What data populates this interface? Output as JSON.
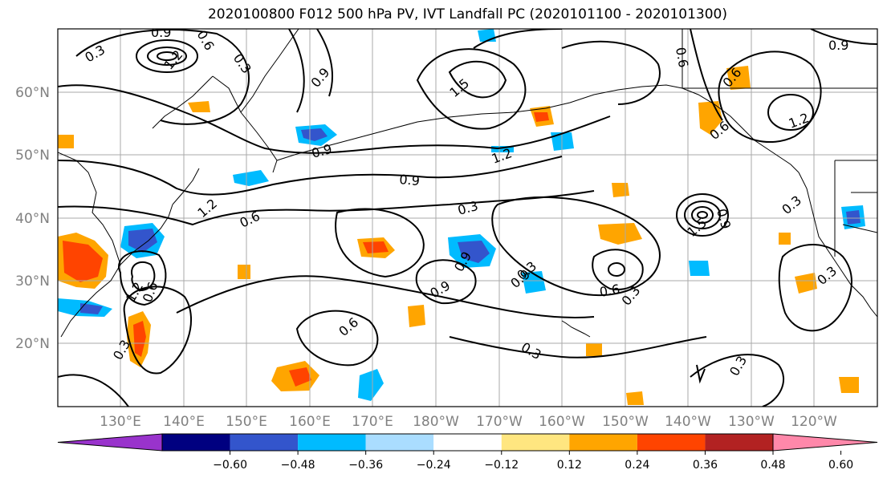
{
  "title": "2020100800 F012 500 hPa PV, IVT Landfall PC (2020101100 - 2020101300)",
  "lat_labels": [
    "60°N",
    "50°N",
    "40°N",
    "30°N",
    "20°N"
  ],
  "lon_labels": [
    "130°E",
    "140°E",
    "150°E",
    "160°E",
    "170°E",
    "180°W",
    "170°W",
    "160°W",
    "150°W",
    "140°W",
    "130°W",
    "120°W"
  ],
  "colorbar": {
    "ticks": [
      "−0.60",
      "−0.48",
      "−0.36",
      "−0.24",
      "−0.12",
      "0.12",
      "0.24",
      "0.36",
      "0.48",
      "0.60"
    ],
    "colors": [
      "#9933cc",
      "#000080",
      "#3355cc",
      "#00bbff",
      "#aaddff",
      "#ffffff",
      "#ffe680",
      "#ffa500",
      "#ff4400",
      "#b22222",
      "#ff88aa"
    ]
  },
  "contour_labels": [
    "0.3",
    "0.9",
    "0.6",
    "1.2",
    "0.3",
    "1.5",
    "0.9",
    "1.2",
    "0.9",
    "1.2",
    "0.9",
    "0.6",
    "0.3",
    "0.9",
    "1.2",
    "0.6",
    "0.9",
    "1.5",
    "0.9",
    "0.3",
    "0.6",
    "0.3",
    "0.9",
    "0.6",
    "0.6",
    "0.3",
    "0.6",
    "0.3",
    "0.3",
    "0.3",
    "0.9",
    "0.3",
    "0.6",
    "1.2"
  ]
}
